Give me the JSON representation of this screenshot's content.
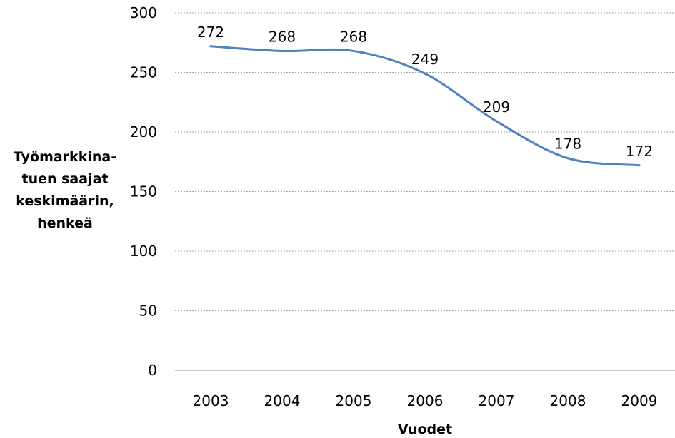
{
  "chart_data": {
    "type": "line",
    "categories": [
      "2003",
      "2004",
      "2005",
      "2006",
      "2007",
      "2008",
      "2009"
    ],
    "series": [
      {
        "values": [
          272,
          268,
          268,
          249,
          209,
          178,
          172
        ],
        "color": "#4F81BD"
      }
    ],
    "data_labels": [
      "272",
      "268",
      "268",
      "249",
      "209",
      "178",
      "172"
    ],
    "ylim": [
      0,
      300
    ],
    "y_ticks": [
      "0",
      "50",
      "100",
      "150",
      "200",
      "250",
      "300"
    ],
    "xlabel": "Vuodet",
    "ylabel_lines": [
      "Työmarkkina-",
      "tuen saajat",
      "keskimäärin,",
      "henkeä"
    ],
    "grid": "horizontal dotted",
    "smooth_line": true,
    "legend": "none"
  }
}
